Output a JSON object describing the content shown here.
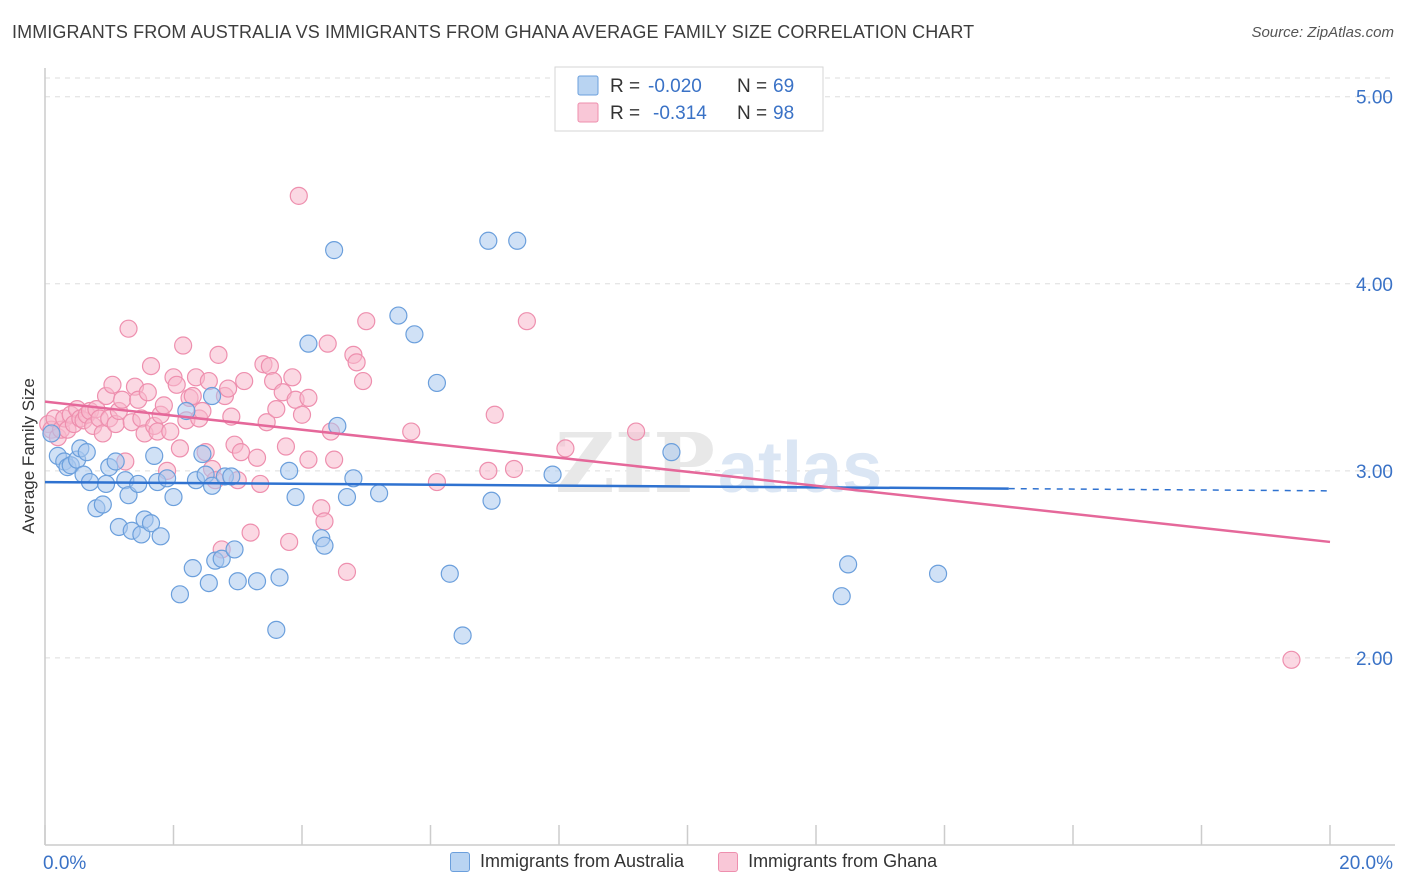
{
  "header": {
    "title": "IMMIGRANTS FROM AUSTRALIA VS IMMIGRANTS FROM GHANA AVERAGE FAMILY SIZE CORRELATION CHART",
    "source": "Source: ZipAtlas.com"
  },
  "colors": {
    "australia_fill": "#a9c8ef",
    "australia_stroke": "#6b9fdc",
    "australia_line": "#2f72d0",
    "ghana_fill": "#f7b8cc",
    "ghana_stroke": "#ee8fae",
    "ghana_line": "#e5689a",
    "axis_label": "#3a72c6",
    "grid": "#dddddd"
  },
  "legend_top": {
    "rows": [
      {
        "r_label": "R = ",
        "r_value": "-0.020",
        "n_label": "N = ",
        "n_value": "69"
      },
      {
        "r_label": "R = ",
        "r_value": "-0.314",
        "n_label": "N = ",
        "n_value": "98"
      }
    ]
  },
  "legend_bottom": {
    "australia": "Immigrants from Australia",
    "ghana": "Immigrants from Ghana"
  },
  "watermark": {
    "zip": "ZIP",
    "atlas": "atlas"
  },
  "chart_data": {
    "type": "scatter",
    "title": "IMMIGRANTS FROM AUSTRALIA VS IMMIGRANTS FROM GHANA AVERAGE FAMILY SIZE CORRELATION CHART",
    "xlabel": "",
    "ylabel": "Average Family Size",
    "xlim": [
      0,
      20
    ],
    "ylim": [
      1.0,
      5.1
    ],
    "x_tick_labels": [
      "0.0%",
      "20.0%"
    ],
    "y_ticks": [
      2.0,
      3.0,
      4.0,
      5.0
    ],
    "y_tick_labels": [
      "2.00",
      "3.00",
      "4.00",
      "5.00"
    ],
    "grid": true,
    "legend_position": "top-center",
    "series": [
      {
        "name": "Immigrants from Australia",
        "r": -0.02,
        "n": 69,
        "trend": {
          "x0": 0.0,
          "y0": 2.94,
          "x1": 15.0,
          "y1": 2.905,
          "dashed_to_x": 20.0,
          "dashed_to_y": 2.893
        },
        "points": [
          [
            0.1,
            3.2
          ],
          [
            0.2,
            3.08
          ],
          [
            0.3,
            3.05
          ],
          [
            0.35,
            3.02
          ],
          [
            0.4,
            3.03
          ],
          [
            0.5,
            3.06
          ],
          [
            0.55,
            3.12
          ],
          [
            0.6,
            2.98
          ],
          [
            0.65,
            3.1
          ],
          [
            0.7,
            2.94
          ],
          [
            0.8,
            2.8
          ],
          [
            0.9,
            2.82
          ],
          [
            0.95,
            2.93
          ],
          [
            1.0,
            3.02
          ],
          [
            1.1,
            3.05
          ],
          [
            1.15,
            2.7
          ],
          [
            1.25,
            2.95
          ],
          [
            1.3,
            2.87
          ],
          [
            1.35,
            2.68
          ],
          [
            1.45,
            2.93
          ],
          [
            1.5,
            2.66
          ],
          [
            1.55,
            2.74
          ],
          [
            1.65,
            2.72
          ],
          [
            1.7,
            3.08
          ],
          [
            1.75,
            2.94
          ],
          [
            1.8,
            2.65
          ],
          [
            1.9,
            2.96
          ],
          [
            2.0,
            2.86
          ],
          [
            2.1,
            2.34
          ],
          [
            2.2,
            3.32
          ],
          [
            2.3,
            2.48
          ],
          [
            2.35,
            2.95
          ],
          [
            2.45,
            3.09
          ],
          [
            2.5,
            2.98
          ],
          [
            2.55,
            2.4
          ],
          [
            2.6,
            3.4
          ],
          [
            2.6,
            2.92
          ],
          [
            2.65,
            2.52
          ],
          [
            2.75,
            2.53
          ],
          [
            2.8,
            2.97
          ],
          [
            2.9,
            2.97
          ],
          [
            2.95,
            2.58
          ],
          [
            3.0,
            2.41
          ],
          [
            3.3,
            2.41
          ],
          [
            3.6,
            2.15
          ],
          [
            3.65,
            2.43
          ],
          [
            3.8,
            3.0
          ],
          [
            3.9,
            2.86
          ],
          [
            4.1,
            3.68
          ],
          [
            4.3,
            2.64
          ],
          [
            4.35,
            2.6
          ],
          [
            4.5,
            4.18
          ],
          [
            4.55,
            3.24
          ],
          [
            4.7,
            2.86
          ],
          [
            4.8,
            2.96
          ],
          [
            5.2,
            2.88
          ],
          [
            5.5,
            3.83
          ],
          [
            5.75,
            3.73
          ],
          [
            6.1,
            3.47
          ],
          [
            6.3,
            2.45
          ],
          [
            6.5,
            2.12
          ],
          [
            6.9,
            4.23
          ],
          [
            6.95,
            2.84
          ],
          [
            7.35,
            4.23
          ],
          [
            7.9,
            2.98
          ],
          [
            9.75,
            3.1
          ],
          [
            12.4,
            2.33
          ],
          [
            12.5,
            2.5
          ],
          [
            13.9,
            2.45
          ]
        ]
      },
      {
        "name": "Immigrants from Ghana",
        "r": -0.314,
        "n": 98,
        "trend": {
          "x0": 0.0,
          "y0": 3.37,
          "x1": 20.0,
          "y1": 2.62
        },
        "points": [
          [
            0.05,
            3.25
          ],
          [
            0.1,
            3.22
          ],
          [
            0.15,
            3.28
          ],
          [
            0.2,
            3.18
          ],
          [
            0.25,
            3.22
          ],
          [
            0.3,
            3.28
          ],
          [
            0.35,
            3.22
          ],
          [
            0.4,
            3.3
          ],
          [
            0.45,
            3.25
          ],
          [
            0.5,
            3.33
          ],
          [
            0.55,
            3.28
          ],
          [
            0.6,
            3.27
          ],
          [
            0.65,
            3.3
          ],
          [
            0.7,
            3.32
          ],
          [
            0.75,
            3.24
          ],
          [
            0.8,
            3.33
          ],
          [
            0.85,
            3.28
          ],
          [
            0.9,
            3.2
          ],
          [
            0.95,
            3.4
          ],
          [
            1.0,
            3.28
          ],
          [
            1.05,
            3.46
          ],
          [
            1.1,
            3.25
          ],
          [
            1.15,
            3.32
          ],
          [
            1.2,
            3.38
          ],
          [
            1.25,
            3.05
          ],
          [
            1.3,
            3.76
          ],
          [
            1.35,
            3.26
          ],
          [
            1.4,
            3.45
          ],
          [
            1.45,
            3.38
          ],
          [
            1.5,
            3.28
          ],
          [
            1.55,
            3.2
          ],
          [
            1.6,
            3.42
          ],
          [
            1.65,
            3.56
          ],
          [
            1.7,
            3.24
          ],
          [
            1.75,
            3.21
          ],
          [
            1.8,
            3.3
          ],
          [
            1.85,
            3.35
          ],
          [
            1.9,
            3.0
          ],
          [
            1.95,
            3.21
          ],
          [
            2.0,
            3.5
          ],
          [
            2.05,
            3.46
          ],
          [
            2.1,
            3.12
          ],
          [
            2.15,
            3.67
          ],
          [
            2.2,
            3.27
          ],
          [
            2.25,
            3.39
          ],
          [
            2.3,
            3.4
          ],
          [
            2.35,
            3.5
          ],
          [
            2.4,
            3.28
          ],
          [
            2.45,
            3.32
          ],
          [
            2.5,
            3.1
          ],
          [
            2.55,
            3.48
          ],
          [
            2.6,
            3.01
          ],
          [
            2.65,
            2.95
          ],
          [
            2.7,
            3.62
          ],
          [
            2.75,
            2.58
          ],
          [
            2.8,
            3.4
          ],
          [
            2.85,
            3.44
          ],
          [
            2.9,
            3.29
          ],
          [
            2.95,
            3.14
          ],
          [
            3.0,
            2.95
          ],
          [
            3.05,
            3.1
          ],
          [
            3.1,
            3.48
          ],
          [
            3.2,
            2.67
          ],
          [
            3.3,
            3.07
          ],
          [
            3.35,
            2.93
          ],
          [
            3.4,
            3.57
          ],
          [
            3.45,
            3.26
          ],
          [
            3.5,
            3.56
          ],
          [
            3.55,
            3.48
          ],
          [
            3.6,
            3.33
          ],
          [
            3.7,
            3.42
          ],
          [
            3.75,
            3.13
          ],
          [
            3.8,
            2.62
          ],
          [
            3.85,
            3.5
          ],
          [
            3.9,
            3.38
          ],
          [
            3.95,
            4.47
          ],
          [
            4.0,
            3.3
          ],
          [
            4.1,
            3.39
          ],
          [
            4.1,
            3.06
          ],
          [
            4.3,
            2.8
          ],
          [
            4.35,
            2.73
          ],
          [
            4.4,
            3.68
          ],
          [
            4.45,
            3.21
          ],
          [
            4.5,
            3.06
          ],
          [
            4.7,
            2.46
          ],
          [
            4.8,
            3.62
          ],
          [
            4.85,
            3.58
          ],
          [
            4.95,
            3.48
          ],
          [
            5.0,
            3.8
          ],
          [
            5.7,
            3.21
          ],
          [
            6.1,
            2.94
          ],
          [
            6.9,
            3.0
          ],
          [
            7.0,
            3.3
          ],
          [
            7.3,
            3.01
          ],
          [
            7.5,
            3.8
          ],
          [
            8.1,
            3.12
          ],
          [
            9.2,
            3.21
          ],
          [
            19.4,
            1.99
          ]
        ]
      }
    ]
  }
}
